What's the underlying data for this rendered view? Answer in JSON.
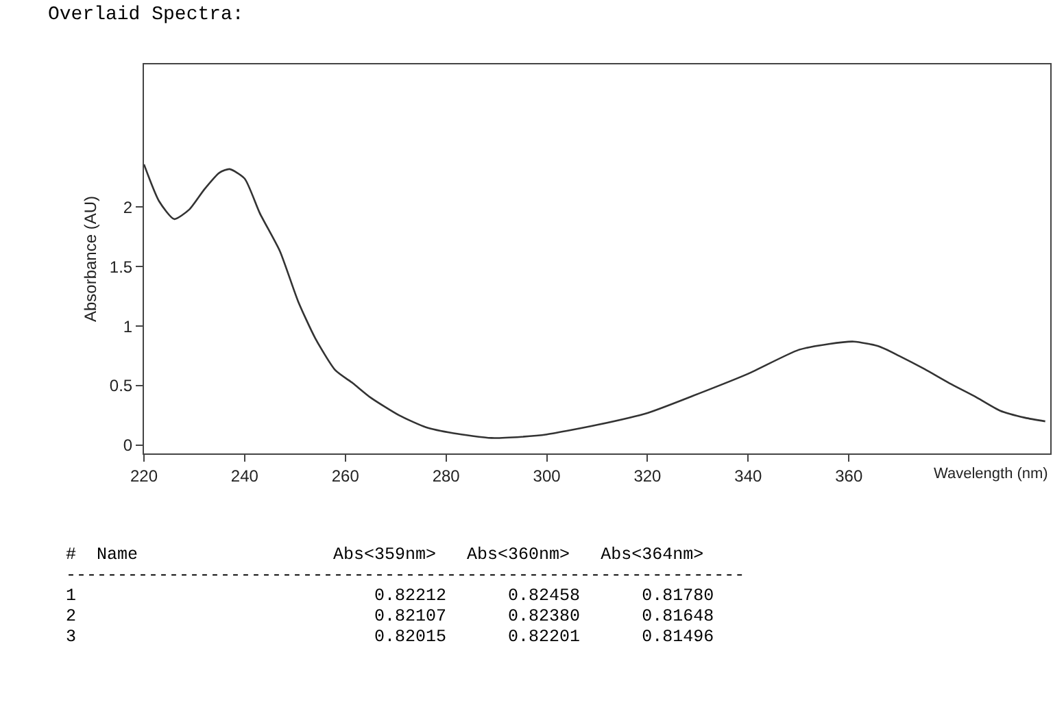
{
  "chart_data": {
    "type": "line",
    "title": "Overlaid Spectra:",
    "xlabel": "Wavelength (nm)",
    "ylabel": "Absorbance (AU)",
    "x": [
      220,
      223,
      226,
      229,
      232,
      235,
      237,
      240,
      243,
      247,
      250.6,
      254,
      258,
      261.5,
      265,
      270.7,
      276,
      281.5,
      289,
      295,
      300,
      310,
      320,
      330,
      340,
      350,
      356,
      361,
      366,
      370,
      375,
      380,
      385,
      390,
      395,
      399
    ],
    "series": [
      {
        "color": "#333333",
        "values": [
          2.36,
          2.05,
          1.9,
          1.98,
          2.15,
          2.29,
          2.32,
          2.24,
          1.95,
          1.63,
          1.21,
          0.9,
          0.63,
          0.52,
          0.4,
          0.25,
          0.15,
          0.1,
          0.06,
          0.07,
          0.09,
          0.17,
          0.27,
          0.43,
          0.6,
          0.8,
          0.85,
          0.87,
          0.83,
          0.75,
          0.64,
          0.52,
          0.41,
          0.29,
          0.23,
          0.2
        ]
      }
    ],
    "xlim": [
      220,
      400
    ],
    "xticks": [
      220,
      240,
      260,
      280,
      300,
      320,
      340,
      360
    ],
    "ylim": [
      -0.07,
      3.2
    ],
    "yticks": [
      0,
      0.5,
      1,
      1.5,
      2
    ],
    "grid": false,
    "marker": "none",
    "line_style": "solid",
    "annotations": [
      "#  Name                   Abs<359nm>   Abs<360nm>   Abs<364nm>",
      "------------------------------------------------------------------",
      "1                             0.82212      0.82458      0.81780",
      "2                             0.82107      0.82380      0.81648",
      "3                             0.82015      0.82201      0.81496"
    ]
  }
}
